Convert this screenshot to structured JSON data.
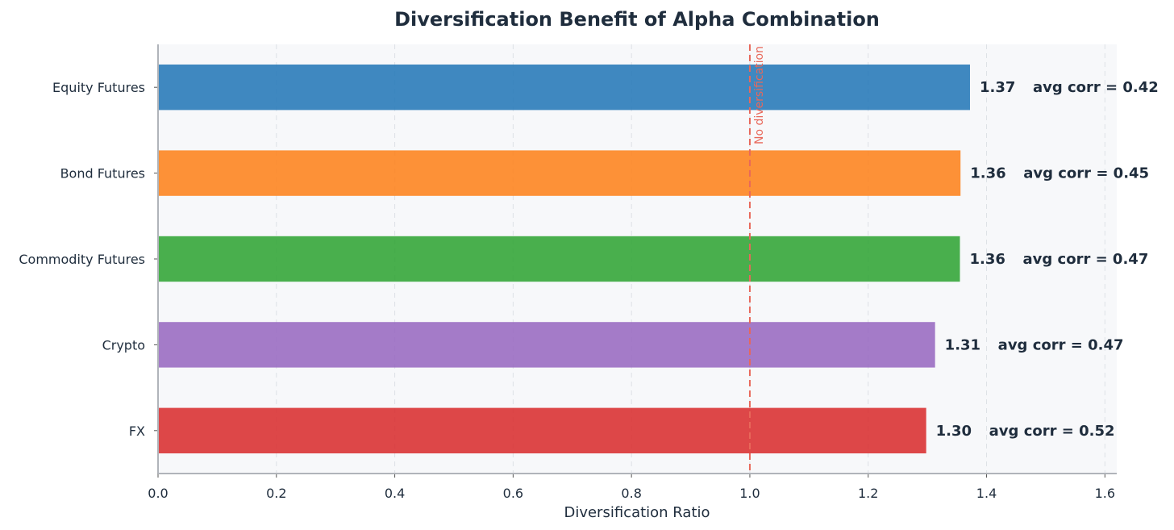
{
  "chart_data": {
    "type": "bar",
    "orientation": "horizontal",
    "title": "Diversification Benefit of Alpha Combination",
    "xlabel": "Diversification Ratio",
    "ylabel": "",
    "xlim": [
      0,
      1.62
    ],
    "x_ticks": [
      "0.0",
      "0.2",
      "0.4",
      "0.6",
      "0.8",
      "1.0",
      "1.2",
      "1.4",
      "1.6"
    ],
    "grid": "vertical dashed",
    "categories": [
      "Equity Futures",
      "Bond Futures",
      "Commodity Futures",
      "Crypto",
      "FX"
    ],
    "values": [
      1.372,
      1.356,
      1.355,
      1.313,
      1.298
    ],
    "value_labels": [
      "1.37",
      "1.36",
      "1.36",
      "1.31",
      "1.30"
    ],
    "annotations": [
      "avg corr = 0.42",
      "avg corr = 0.45",
      "avg corr = 0.47",
      "avg corr = 0.47",
      "avg corr = 0.52"
    ],
    "colors": [
      "#2a7bb9",
      "#fd8521",
      "#35a63a",
      "#9a6dc2",
      "#d93334"
    ],
    "reference_line": {
      "x": 1.0,
      "label": "No diversification",
      "color": "#e8685a",
      "style": "dashed"
    },
    "background_color": "#f7f8fa"
  }
}
